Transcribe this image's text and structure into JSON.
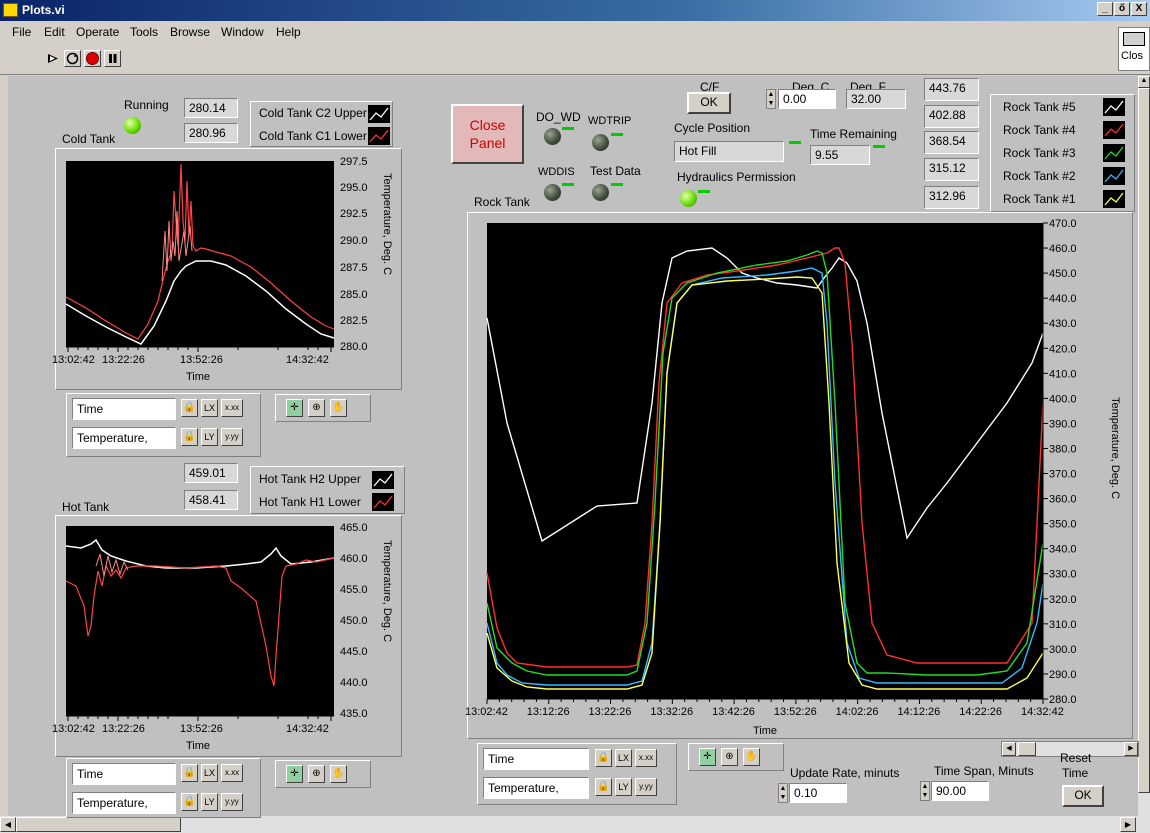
{
  "window": {
    "title": "Plots.vi",
    "min": "_",
    "max": "ő",
    "close": "X"
  },
  "menu": [
    "File",
    "Edit",
    "Operate",
    "Tools",
    "Browse",
    "Window",
    "Help"
  ],
  "corner_label": "Clos",
  "status": {
    "running_label": "Running",
    "close_panel_label": [
      "Close",
      "Panel"
    ]
  },
  "cold_tank": {
    "label": "Cold Tank",
    "upper_value": "280.14",
    "lower_value": "280.96",
    "legend": [
      "Cold Tank C2 Upper",
      "Cold Tank C1 Lower"
    ],
    "xlabel": "Time",
    "ylabel": "Temperature, Deg. C",
    "x_ticks": [
      "13:02:42",
      "13:22:26",
      "13:52:26",
      "14:32:42"
    ],
    "y_ticks": [
      "297.5",
      "295.0",
      "292.5",
      "290.0",
      "287.5",
      "285.0",
      "282.5",
      "280.0"
    ],
    "time_field": "Time",
    "temp_field": "Temperature,"
  },
  "hot_tank": {
    "label": "Hot Tank",
    "upper_value": "459.01",
    "lower_value": "458.41",
    "legend": [
      "Hot Tank H2 Upper",
      "Hot Tank H1 Lower"
    ],
    "xlabel": "Time",
    "ylabel": "Temperature, Deg. C",
    "x_ticks": [
      "13:02:42",
      "13:22:26",
      "13:52:26",
      "14:32:42"
    ],
    "y_ticks": [
      "465.0",
      "460.0",
      "455.0",
      "450.0",
      "445.0",
      "440.0",
      "435.0"
    ],
    "time_field": "Time",
    "temp_field": "Temperature,"
  },
  "indicators": {
    "do_wd": "DO_WD",
    "wdtrip": "WDTRIP",
    "wddis": "WDDIS",
    "test_data": "Test Data",
    "cf_label": "C/F",
    "cf_button": "OK",
    "degc_label": "Deg. C",
    "degc_value": "0.00",
    "degf_label": "Deg. F",
    "degf_value": "32.00",
    "cycle_position_label": "Cycle Position",
    "cycle_position_value": "Hot Fill",
    "time_remaining_label": "Time Remaining",
    "time_remaining_value": "9.55",
    "hydraulics_label": "Hydraulics Permission"
  },
  "rock_tank": {
    "label": "Rock Tank",
    "values": [
      "443.76",
      "402.88",
      "368.54",
      "315.12",
      "312.96"
    ],
    "legend": [
      "Rock Tank #5",
      "Rock Tank #4",
      "Rock Tank #3",
      "Rock Tank #2",
      "Rock Tank #1"
    ],
    "xlabel": "Time",
    "ylabel": "Temperature, Deg. C",
    "x_ticks": [
      "13:02:42",
      "13:12:26",
      "13:22:26",
      "13:32:26",
      "13:42:26",
      "13:52:26",
      "14:02:26",
      "14:12:26",
      "14:22:26",
      "14:32:42"
    ],
    "y_ticks": [
      "470.0",
      "460.0",
      "450.0",
      "440.0",
      "430.0",
      "420.0",
      "410.0",
      "400.0",
      "390.0",
      "380.0",
      "370.0",
      "360.0",
      "350.0",
      "340.0",
      "330.0",
      "320.0",
      "310.0",
      "300.0",
      "290.0",
      "280.0"
    ],
    "time_field": "Time",
    "temp_field": "Temperature,"
  },
  "controls": {
    "update_rate_label": "Update Rate, minuts",
    "update_rate_value": "0.10",
    "time_span_label": "Time Span, Minuts",
    "time_span_value": "90.00",
    "reset_time_label": [
      "Reset",
      "Time"
    ],
    "reset_button": "OK"
  },
  "colors": {
    "white": "#ffffff",
    "red": "#ff3030",
    "green": "#22dd22",
    "cyan": "#33bbff",
    "yellow": "#ffff55"
  }
}
